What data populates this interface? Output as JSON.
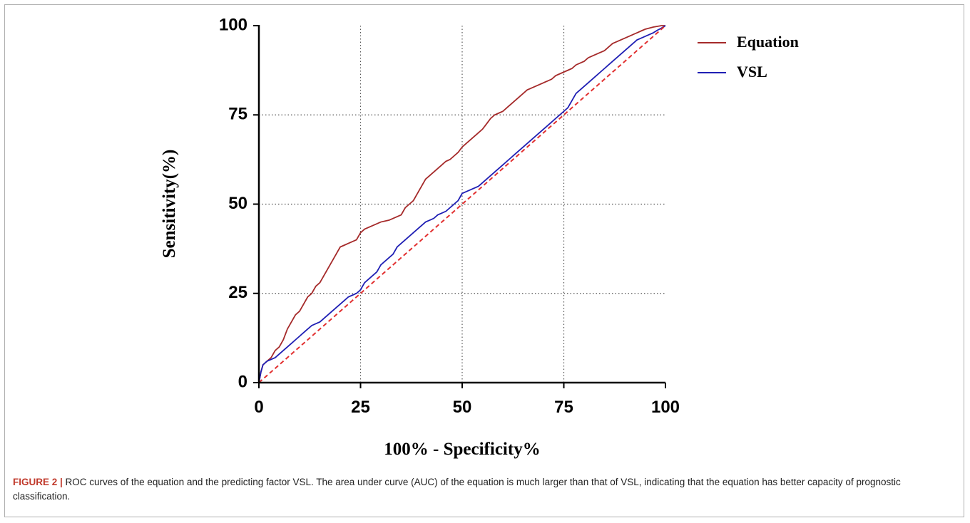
{
  "chart_data": {
    "type": "line",
    "xlabel": "100% - Specificity%",
    "ylabel": "Sensitivity(%)",
    "xlim": [
      0,
      100
    ],
    "ylim": [
      0,
      100
    ],
    "x_ticks": [
      "0",
      "25",
      "50",
      "75",
      "100"
    ],
    "y_ticks": [
      "0",
      "25",
      "50",
      "75",
      "100"
    ],
    "grid": "dotted at 25, 50, 75",
    "legend_position": "top-right, outside plot",
    "series": [
      {
        "name": "Equation",
        "color": "#a52a2a",
        "points": [
          [
            0,
            0
          ],
          [
            0.5,
            3
          ],
          [
            1,
            5
          ],
          [
            2,
            6
          ],
          [
            3,
            7
          ],
          [
            4,
            9
          ],
          [
            5,
            10
          ],
          [
            6,
            12
          ],
          [
            7,
            15
          ],
          [
            8,
            17
          ],
          [
            9,
            19
          ],
          [
            10,
            20
          ],
          [
            11,
            22
          ],
          [
            12,
            24
          ],
          [
            13,
            25
          ],
          [
            14,
            27
          ],
          [
            15,
            28
          ],
          [
            16,
            30
          ],
          [
            17,
            32
          ],
          [
            18,
            34
          ],
          [
            19,
            36
          ],
          [
            20,
            38
          ],
          [
            21,
            38.5
          ],
          [
            22,
            39
          ],
          [
            23,
            39.5
          ],
          [
            24,
            40
          ],
          [
            24.5,
            41
          ],
          [
            25,
            42
          ],
          [
            26,
            43
          ],
          [
            28,
            44
          ],
          [
            30,
            45
          ],
          [
            32,
            45.5
          ],
          [
            34,
            46.5
          ],
          [
            35,
            47
          ],
          [
            36,
            49
          ],
          [
            37,
            50
          ],
          [
            38,
            51
          ],
          [
            39,
            53
          ],
          [
            40,
            55
          ],
          [
            41,
            57
          ],
          [
            42,
            58
          ],
          [
            43,
            59
          ],
          [
            44,
            60
          ],
          [
            45,
            61
          ],
          [
            46,
            62
          ],
          [
            47,
            62.5
          ],
          [
            48,
            63.5
          ],
          [
            49,
            64.5
          ],
          [
            50,
            66
          ],
          [
            51,
            67
          ],
          [
            52,
            68
          ],
          [
            53,
            69
          ],
          [
            54,
            70
          ],
          [
            55,
            71
          ],
          [
            56,
            72.5
          ],
          [
            57,
            74
          ],
          [
            58,
            75
          ],
          [
            59,
            75.5
          ],
          [
            60,
            76
          ],
          [
            61,
            77
          ],
          [
            62,
            78
          ],
          [
            63,
            79
          ],
          [
            64,
            80
          ],
          [
            65,
            81
          ],
          [
            66,
            82
          ],
          [
            67,
            82.5
          ],
          [
            68,
            83
          ],
          [
            69,
            83.5
          ],
          [
            70,
            84
          ],
          [
            71,
            84.5
          ],
          [
            72,
            85
          ],
          [
            73,
            86
          ],
          [
            74,
            86.5
          ],
          [
            75,
            87
          ],
          [
            76,
            87.5
          ],
          [
            77,
            88
          ],
          [
            78,
            89
          ],
          [
            79,
            89.5
          ],
          [
            80,
            90
          ],
          [
            81,
            91
          ],
          [
            82,
            91.5
          ],
          [
            83,
            92
          ],
          [
            84,
            92.5
          ],
          [
            85,
            93
          ],
          [
            86,
            94
          ],
          [
            87,
            95
          ],
          [
            88,
            95.5
          ],
          [
            89,
            96
          ],
          [
            90,
            96.5
          ],
          [
            91,
            97
          ],
          [
            92,
            97.5
          ],
          [
            93,
            98
          ],
          [
            94,
            98.5
          ],
          [
            95,
            99
          ],
          [
            96,
            99.3
          ],
          [
            97,
            99.6
          ],
          [
            98,
            99.8
          ],
          [
            99,
            100
          ],
          [
            100,
            100
          ]
        ]
      },
      {
        "name": "VSL",
        "color": "#1f1fb4",
        "points": [
          [
            0,
            0
          ],
          [
            0.5,
            3
          ],
          [
            1,
            5
          ],
          [
            2,
            6
          ],
          [
            3,
            6.5
          ],
          [
            4,
            7
          ],
          [
            5,
            8
          ],
          [
            6,
            9
          ],
          [
            7,
            10
          ],
          [
            8,
            11
          ],
          [
            9,
            12
          ],
          [
            10,
            13
          ],
          [
            11,
            14
          ],
          [
            12,
            15
          ],
          [
            13,
            16
          ],
          [
            14,
            16.5
          ],
          [
            15,
            17
          ],
          [
            16,
            18
          ],
          [
            17,
            19
          ],
          [
            18,
            20
          ],
          [
            19,
            21
          ],
          [
            20,
            22
          ],
          [
            21,
            23
          ],
          [
            22,
            24
          ],
          [
            23,
            24.5
          ],
          [
            24,
            25
          ],
          [
            25,
            26
          ],
          [
            26,
            28
          ],
          [
            27,
            29
          ],
          [
            28,
            30
          ],
          [
            29,
            31
          ],
          [
            30,
            33
          ],
          [
            31,
            34
          ],
          [
            32,
            35
          ],
          [
            33,
            36
          ],
          [
            34,
            38
          ],
          [
            35,
            39
          ],
          [
            36,
            40
          ],
          [
            37,
            41
          ],
          [
            38,
            42
          ],
          [
            39,
            43
          ],
          [
            40,
            44
          ],
          [
            41,
            45
          ],
          [
            42,
            45.5
          ],
          [
            43,
            46
          ],
          [
            44,
            47
          ],
          [
            45,
            47.5
          ],
          [
            46,
            48
          ],
          [
            47,
            49
          ],
          [
            48,
            50
          ],
          [
            49,
            51
          ],
          [
            50,
            53
          ],
          [
            52,
            54
          ],
          [
            54,
            55
          ],
          [
            55,
            56
          ],
          [
            56,
            57
          ],
          [
            57,
            58
          ],
          [
            58,
            59
          ],
          [
            59,
            60
          ],
          [
            60,
            61
          ],
          [
            61,
            62
          ],
          [
            62,
            63
          ],
          [
            63,
            64
          ],
          [
            64,
            65
          ],
          [
            65,
            66
          ],
          [
            66,
            67
          ],
          [
            67,
            68
          ],
          [
            68,
            69
          ],
          [
            69,
            70
          ],
          [
            70,
            71
          ],
          [
            71,
            72
          ],
          [
            72,
            73
          ],
          [
            73,
            74
          ],
          [
            74,
            75
          ],
          [
            75,
            76
          ],
          [
            76,
            77
          ],
          [
            77,
            79
          ],
          [
            78,
            81
          ],
          [
            79,
            82
          ],
          [
            80,
            83
          ],
          [
            81,
            84
          ],
          [
            82,
            85
          ],
          [
            83,
            86
          ],
          [
            84,
            87
          ],
          [
            85,
            88
          ],
          [
            86,
            89
          ],
          [
            87,
            90
          ],
          [
            88,
            91
          ],
          [
            89,
            92
          ],
          [
            90,
            93
          ],
          [
            91,
            94
          ],
          [
            92,
            95
          ],
          [
            93,
            96
          ],
          [
            94,
            96.5
          ],
          [
            95,
            97
          ],
          [
            96,
            97.5
          ],
          [
            97,
            98
          ],
          [
            98,
            98.7
          ],
          [
            99,
            99.3
          ],
          [
            100,
            100
          ]
        ]
      },
      {
        "name": "",
        "color": "#e23030",
        "dashed": true,
        "points": [
          [
            0,
            0
          ],
          [
            100,
            100
          ]
        ]
      }
    ]
  },
  "caption": {
    "label": "FIGURE 2 |",
    "text": " ROC curves of the equation and the predicting factor VSL. The area under curve (AUC) of the equation is much larger than that of VSL, indicating that the equation has better capacity of prognostic classification."
  }
}
